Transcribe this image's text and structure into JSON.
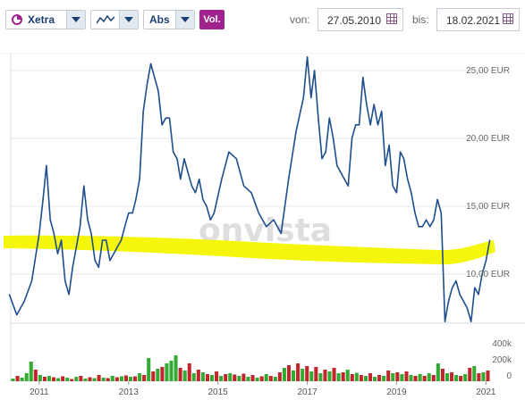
{
  "toolbar": {
    "exchange": "Xetra",
    "scale": "Abs",
    "volume": "Vol.",
    "from_label": "von:",
    "from_date": "27.05.2010",
    "to_label": "bis:",
    "to_date": "18.02.2021"
  },
  "colors": {
    "price": "#1f4e8c",
    "trend": "#f5f500",
    "vol_up": "#33aa33",
    "vol_down": "#c0272d",
    "vol_button": "#a0228c"
  },
  "watermark": "onvista",
  "chart_data": {
    "type": "line",
    "x_range": [
      "2010-05-27",
      "2021-02-18"
    ],
    "ylim": [
      5,
      27
    ],
    "yticks": [
      "25,00 EUR",
      "20,00 EUR",
      "15,00 EUR",
      "10,00 EUR"
    ],
    "xticks": [
      "2011",
      "2013",
      "2015",
      "2017",
      "2019",
      "2021"
    ],
    "series": [
      {
        "x": [
          "2010-05",
          "2010-07",
          "2010-09",
          "2010-11",
          "2011-01",
          "2011-02",
          "2011-03",
          "2011-04",
          "2011-05",
          "2011-06",
          "2011-07",
          "2011-08",
          "2011-09",
          "2011-10",
          "2011-11",
          "2011-12",
          "2012-01",
          "2012-02",
          "2012-03",
          "2012-04",
          "2012-05",
          "2012-06",
          "2012-07",
          "2012-08",
          "2012-09",
          "2012-10",
          "2012-11",
          "2012-12",
          "2013-01",
          "2013-02",
          "2013-03",
          "2013-04",
          "2013-05",
          "2013-06",
          "2013-07",
          "2013-08",
          "2013-09",
          "2013-10",
          "2013-11",
          "2013-12",
          "2014-01",
          "2014-02",
          "2014-03",
          "2014-04",
          "2014-05",
          "2014-06",
          "2014-07",
          "2014-08",
          "2014-09",
          "2014-10",
          "2014-11",
          "2014-12",
          "2015-02",
          "2015-04",
          "2015-06",
          "2015-08",
          "2015-10",
          "2015-12",
          "2016-02",
          "2016-04",
          "2016-06",
          "2016-08",
          "2016-10",
          "2016-12",
          "2017-01",
          "2017-02",
          "2017-03",
          "2017-04",
          "2017-05",
          "2017-06",
          "2017-07",
          "2017-08",
          "2017-09",
          "2017-10",
          "2017-11",
          "2017-12",
          "2018-01",
          "2018-02",
          "2018-03",
          "2018-04",
          "2018-05",
          "2018-06",
          "2018-07",
          "2018-08",
          "2018-09",
          "2018-10",
          "2018-11",
          "2018-12",
          "2019-01",
          "2019-02",
          "2019-03",
          "2019-04",
          "2019-05",
          "2019-06",
          "2019-07",
          "2019-08",
          "2019-09",
          "2019-10",
          "2019-11",
          "2019-12",
          "2020-01",
          "2020-02",
          "2020-03",
          "2020-04",
          "2020-05",
          "2020-06",
          "2020-07",
          "2020-08",
          "2020-09",
          "2020-10",
          "2020-11",
          "2020-12",
          "2021-01",
          "2021-02"
        ],
        "y": [
          8.5,
          7.0,
          8.0,
          9.5,
          13.0,
          15.5,
          18.0,
          14.0,
          13.0,
          11.5,
          12.5,
          9.5,
          8.5,
          10.5,
          12.0,
          13.5,
          16.5,
          14.0,
          13.0,
          11.0,
          10.5,
          12.5,
          12.5,
          11.0,
          11.5,
          12.0,
          12.5,
          13.5,
          14.5,
          14.5,
          15.5,
          17.0,
          22.0,
          24.0,
          25.5,
          24.5,
          23.5,
          21.0,
          21.5,
          21.5,
          19.0,
          18.5,
          17.0,
          18.5,
          17.5,
          16.5,
          16.0,
          17.0,
          15.5,
          15.0,
          14.0,
          14.5,
          17.0,
          19.0,
          18.5,
          16.5,
          16.0,
          14.5,
          13.5,
          14.0,
          13.0,
          17.0,
          20.5,
          23.0,
          26.0,
          23.0,
          25.0,
          21.5,
          18.5,
          19.0,
          21.5,
          20.0,
          18.0,
          17.5,
          17.0,
          16.5,
          20.0,
          21.0,
          21.0,
          24.5,
          22.5,
          21.0,
          22.5,
          21.0,
          22.0,
          18.0,
          19.5,
          16.5,
          16.0,
          19.0,
          18.5,
          17.0,
          16.0,
          14.5,
          13.5,
          13.5,
          14.0,
          13.5,
          14.0,
          15.5,
          14.5,
          6.5,
          8.0,
          9.0,
          9.5,
          8.5,
          8.0,
          7.5,
          6.5,
          9.0,
          8.5,
          10.0,
          11.0,
          12.5
        ]
      }
    ],
    "trend": {
      "note": "yellow highlighter band"
    },
    "volume": {
      "axis": [
        "400k",
        "200k",
        "0"
      ],
      "bars": [
        {
          "v": 30,
          "d": 1
        },
        {
          "v": 60,
          "d": -1
        },
        {
          "v": 40,
          "d": 1
        },
        {
          "v": 90,
          "d": 1
        },
        {
          "v": 220,
          "d": 1
        },
        {
          "v": 130,
          "d": -1
        },
        {
          "v": 70,
          "d": 1
        },
        {
          "v": 50,
          "d": -1
        },
        {
          "v": 60,
          "d": 1
        },
        {
          "v": 45,
          "d": -1
        },
        {
          "v": 35,
          "d": 1
        },
        {
          "v": 55,
          "d": -1
        },
        {
          "v": 40,
          "d": 1
        },
        {
          "v": 25,
          "d": -1
        },
        {
          "v": 50,
          "d": 1
        },
        {
          "v": 60,
          "d": -1
        },
        {
          "v": 30,
          "d": 1
        },
        {
          "v": 45,
          "d": -1
        },
        {
          "v": 35,
          "d": 1
        },
        {
          "v": 70,
          "d": -1
        },
        {
          "v": 40,
          "d": 1
        },
        {
          "v": 35,
          "d": -1
        },
        {
          "v": 60,
          "d": 1
        },
        {
          "v": 45,
          "d": -1
        },
        {
          "v": 55,
          "d": 1
        },
        {
          "v": 65,
          "d": -1
        },
        {
          "v": 50,
          "d": 1
        },
        {
          "v": 55,
          "d": -1
        },
        {
          "v": 90,
          "d": 1
        },
        {
          "v": 70,
          "d": -1
        },
        {
          "v": 260,
          "d": 1
        },
        {
          "v": 110,
          "d": -1
        },
        {
          "v": 140,
          "d": 1
        },
        {
          "v": 160,
          "d": -1
        },
        {
          "v": 200,
          "d": 1
        },
        {
          "v": 230,
          "d": 1
        },
        {
          "v": 290,
          "d": 1
        },
        {
          "v": 150,
          "d": -1
        },
        {
          "v": 120,
          "d": 1
        },
        {
          "v": 200,
          "d": -1
        },
        {
          "v": 90,
          "d": 1
        },
        {
          "v": 130,
          "d": -1
        },
        {
          "v": 100,
          "d": 1
        },
        {
          "v": 80,
          "d": -1
        },
        {
          "v": 70,
          "d": 1
        },
        {
          "v": 110,
          "d": -1
        },
        {
          "v": 60,
          "d": 1
        },
        {
          "v": 80,
          "d": -1
        },
        {
          "v": 90,
          "d": 1
        },
        {
          "v": 75,
          "d": -1
        },
        {
          "v": 60,
          "d": 1
        },
        {
          "v": 85,
          "d": -1
        },
        {
          "v": 50,
          "d": 1
        },
        {
          "v": 70,
          "d": -1
        },
        {
          "v": 40,
          "d": 1
        },
        {
          "v": 55,
          "d": -1
        },
        {
          "v": 80,
          "d": 1
        },
        {
          "v": 60,
          "d": -1
        },
        {
          "v": 50,
          "d": 1
        },
        {
          "v": 100,
          "d": -1
        },
        {
          "v": 150,
          "d": 1
        },
        {
          "v": 180,
          "d": -1
        },
        {
          "v": 120,
          "d": 1
        },
        {
          "v": 200,
          "d": -1
        },
        {
          "v": 140,
          "d": 1
        },
        {
          "v": 170,
          "d": -1
        },
        {
          "v": 110,
          "d": 1
        },
        {
          "v": 160,
          "d": -1
        },
        {
          "v": 90,
          "d": 1
        },
        {
          "v": 130,
          "d": -1
        },
        {
          "v": 110,
          "d": 1
        },
        {
          "v": 150,
          "d": -1
        },
        {
          "v": 90,
          "d": 1
        },
        {
          "v": 100,
          "d": -1
        },
        {
          "v": 130,
          "d": 1
        },
        {
          "v": 80,
          "d": -1
        },
        {
          "v": 95,
          "d": 1
        },
        {
          "v": 70,
          "d": -1
        },
        {
          "v": 60,
          "d": 1
        },
        {
          "v": 90,
          "d": -1
        },
        {
          "v": 50,
          "d": 1
        },
        {
          "v": 70,
          "d": -1
        },
        {
          "v": 60,
          "d": 1
        },
        {
          "v": 120,
          "d": -1
        },
        {
          "v": 90,
          "d": 1
        },
        {
          "v": 100,
          "d": -1
        },
        {
          "v": 80,
          "d": 1
        },
        {
          "v": 110,
          "d": -1
        },
        {
          "v": 70,
          "d": 1
        },
        {
          "v": 60,
          "d": -1
        },
        {
          "v": 80,
          "d": 1
        },
        {
          "v": 60,
          "d": -1
        },
        {
          "v": 90,
          "d": 1
        },
        {
          "v": 70,
          "d": -1
        },
        {
          "v": 200,
          "d": 1
        },
        {
          "v": 140,
          "d": -1
        },
        {
          "v": 90,
          "d": 1
        },
        {
          "v": 100,
          "d": -1
        },
        {
          "v": 70,
          "d": 1
        },
        {
          "v": 60,
          "d": -1
        },
        {
          "v": 80,
          "d": 1
        },
        {
          "v": 150,
          "d": -1
        },
        {
          "v": 170,
          "d": 1
        },
        {
          "v": 90,
          "d": -1
        },
        {
          "v": 100,
          "d": 1
        },
        {
          "v": 120,
          "d": -1
        }
      ]
    }
  }
}
